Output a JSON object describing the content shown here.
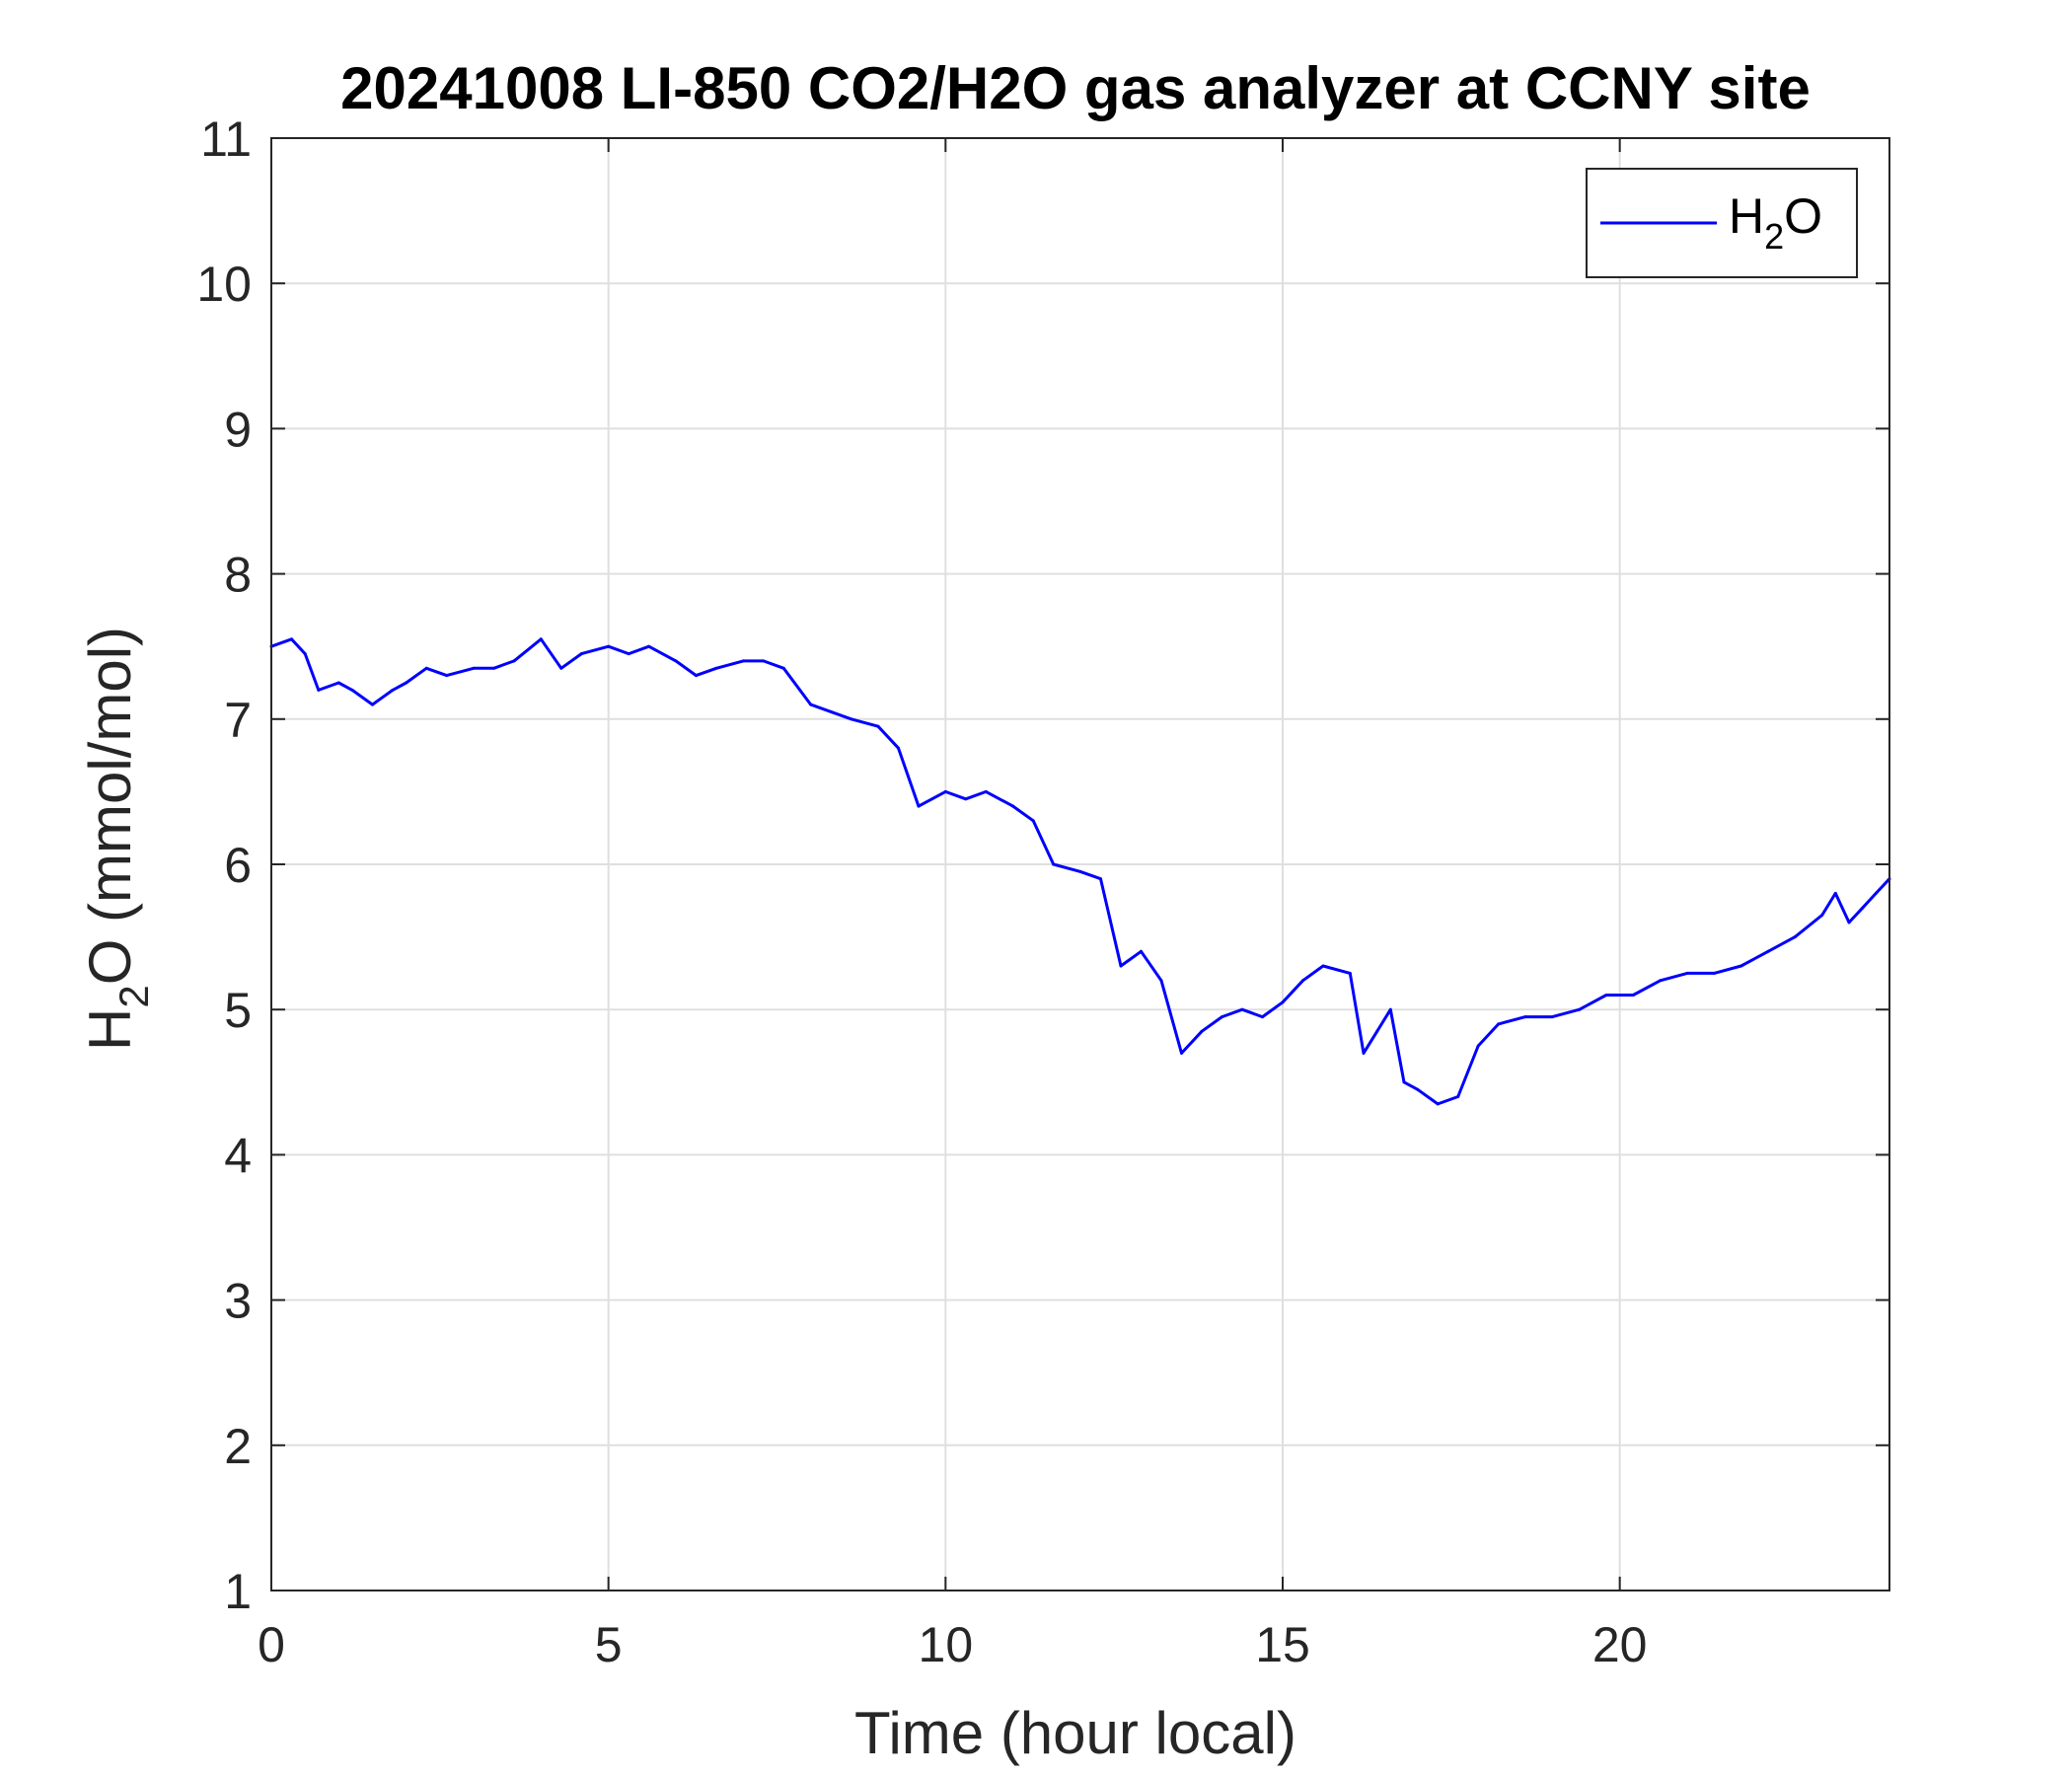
{
  "chart_data": {
    "type": "line",
    "title": "20241008 LI-850 CO2/H2O gas analyzer at CCNY site",
    "xlabel": "Time (hour local)",
    "ylabel": {
      "main": "H",
      "sub": "2",
      "rest": "O (mmol/mol)"
    },
    "xlim": [
      0,
      24
    ],
    "ylim": [
      1,
      11
    ],
    "xticks": [
      0,
      5,
      10,
      15,
      20
    ],
    "yticks": [
      1,
      2,
      3,
      4,
      5,
      6,
      7,
      8,
      9,
      10,
      11
    ],
    "grid": true,
    "legend_position": "top-right",
    "series": [
      {
        "name": {
          "main": "H",
          "sub": "2",
          "rest": "O"
        },
        "color": "#0000ff",
        "x": [
          0,
          0.3,
          0.5,
          0.7,
          1.0,
          1.2,
          1.5,
          1.8,
          2.0,
          2.3,
          2.6,
          3.0,
          3.3,
          3.6,
          4.0,
          4.3,
          4.6,
          5.0,
          5.3,
          5.6,
          6.0,
          6.3,
          6.6,
          7.0,
          7.3,
          7.6,
          8.0,
          8.3,
          8.6,
          9.0,
          9.3,
          9.6,
          10.0,
          10.3,
          10.6,
          11.0,
          11.3,
          11.6,
          12.0,
          12.3,
          12.6,
          12.9,
          13.2,
          13.5,
          13.8,
          14.1,
          14.4,
          14.7,
          15.0,
          15.3,
          15.6,
          16.0,
          16.2,
          16.4,
          16.6,
          16.8,
          17.0,
          17.3,
          17.6,
          17.9,
          18.2,
          18.6,
          19.0,
          19.4,
          19.8,
          20.2,
          20.6,
          21.0,
          21.4,
          21.8,
          22.2,
          22.6,
          23.0,
          23.2,
          23.4,
          23.6,
          23.8,
          24.0
        ],
        "values": [
          7.5,
          7.55,
          7.45,
          7.2,
          7.25,
          7.2,
          7.1,
          7.2,
          7.25,
          7.35,
          7.3,
          7.35,
          7.35,
          7.4,
          7.55,
          7.35,
          7.45,
          7.5,
          7.45,
          7.5,
          7.4,
          7.3,
          7.35,
          7.4,
          7.4,
          7.35,
          7.1,
          7.05,
          7.0,
          6.95,
          6.8,
          6.4,
          6.5,
          6.45,
          6.5,
          6.4,
          6.3,
          6.0,
          5.95,
          5.9,
          5.3,
          5.4,
          5.2,
          4.7,
          4.85,
          4.95,
          5.0,
          4.95,
          5.05,
          5.2,
          5.3,
          5.25,
          4.7,
          4.85,
          5.0,
          4.5,
          4.45,
          4.35,
          4.4,
          4.75,
          4.9,
          4.95,
          4.95,
          5.0,
          5.1,
          5.1,
          5.2,
          5.25,
          5.25,
          5.3,
          5.4,
          5.5,
          5.65,
          5.8,
          5.6,
          5.7,
          5.8,
          5.9
        ]
      }
    ]
  }
}
